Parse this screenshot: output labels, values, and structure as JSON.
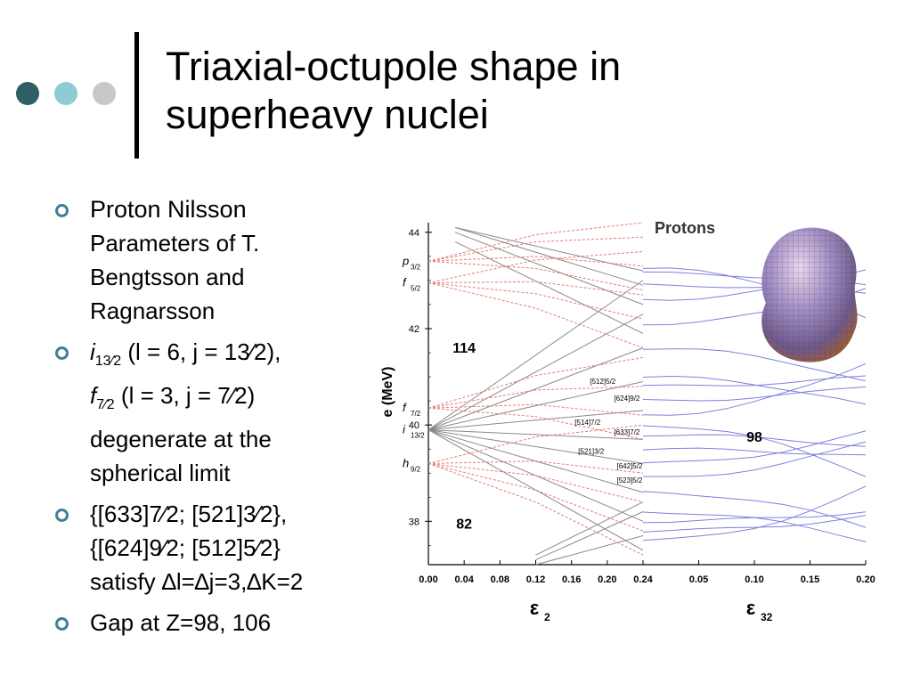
{
  "slide": {
    "title_line1": "Triaxial-octupole shape in",
    "title_line2": "superheavy nuclei",
    "dot_colors": [
      "#2e5f64",
      "#8fcbd4",
      "#c8c8c8"
    ],
    "bullet_color": "#3f7f96"
  },
  "bullets": {
    "b1_line1": "Proton Nilsson",
    "b1_rest": "Parameters of T. Bengtsson and Ragnarsson",
    "b2_i": "i",
    "b2_i_sub": "13⁄2",
    "b2_i_paren": " (l = 6, j = 13⁄2),",
    "b2_f": "f",
    "b2_f_sub": "7⁄2",
    "b2_f_paren": " (l = 3, j = 7⁄2)",
    "b2_rest": "degenerate at the spherical limit",
    "b3_line1": "{[633]7⁄2; [521]3⁄2},",
    "b3_line2": "{[624]9⁄2; [512]5⁄2}",
    "b3_line3": "satisfy ∆l=∆j=3,∆K=2",
    "b4": "Gap at Z=98, 106"
  },
  "chart_data": {
    "type": "line",
    "title": "Protons",
    "ylabel": "e  (MeV)",
    "y_ticks": [
      "44",
      "42",
      "40",
      "38"
    ],
    "ylim": [
      37.1,
      44.2
    ],
    "left_panel": {
      "xlabel": "ε",
      "xlabel_sub": "2",
      "x_ticks": [
        "0.00",
        "0.04",
        "0.08",
        "0.12",
        "0.16",
        "0.20",
        "0.24"
      ],
      "xlim": [
        0,
        0.24
      ]
    },
    "right_panel": {
      "xlabel": "ε",
      "xlabel_sub": "32",
      "x_ticks": [
        "0.05",
        "0.10",
        "0.15",
        "0.20"
      ],
      "xlim": [
        0,
        0.2
      ]
    },
    "spherical_levels": [
      {
        "label": "p",
        "sub": "3/2",
        "e": 43.4
      },
      {
        "label": "f",
        "sub": "5/2",
        "e": 42.95
      },
      {
        "label": "f",
        "sub": "7/2",
        "e": 40.35
      },
      {
        "label": "i",
        "sub": "13/2",
        "e": 39.9
      },
      {
        "label": "h",
        "sub": "9/2",
        "e": 39.2
      }
    ],
    "gap_labels": [
      {
        "text": "114",
        "x": 0.04,
        "e": 41.5
      },
      {
        "text": "82",
        "x": 0.04,
        "e": 37.85
      },
      {
        "text": "98",
        "x": 0.1,
        "e": 39.65,
        "panel": "right"
      }
    ],
    "orbital_labels": [
      {
        "text": "[512]5/2",
        "x": 0.195,
        "e": 40.85
      },
      {
        "text": "[624]9/2",
        "x": 0.222,
        "e": 40.5
      },
      {
        "text": "[514]7/2",
        "x": 0.178,
        "e": 40.0
      },
      {
        "text": "[633]7/2",
        "x": 0.222,
        "e": 39.8
      },
      {
        "text": "[521]3/2",
        "x": 0.182,
        "e": 39.4
      },
      {
        "text": "[642]5/2",
        "x": 0.225,
        "e": 39.1
      },
      {
        "text": "[523]5/2",
        "x": 0.225,
        "e": 38.8
      }
    ],
    "series_colors": {
      "positive_parity": "#8a8a8a",
      "negative_parity": "#e57a7a",
      "octupole": "#7f7fe0"
    }
  }
}
